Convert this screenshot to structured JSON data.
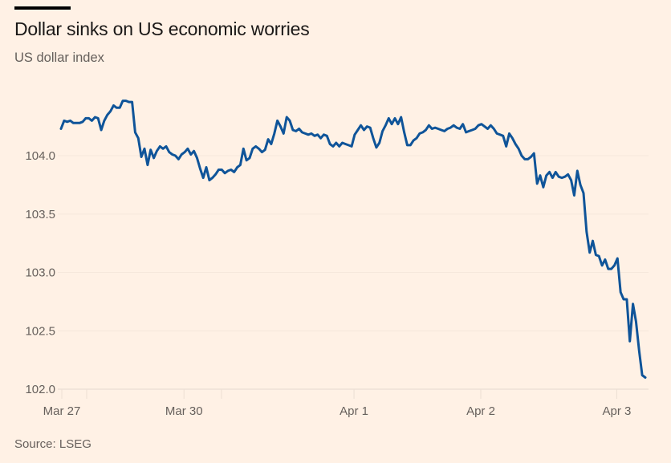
{
  "title": "Dollar sinks on US economic worries",
  "subtitle": "US dollar index",
  "source": "Source: LSEG",
  "colors": {
    "background": "#fff1e5",
    "line": "#0f5499",
    "grid": "#efe3d8",
    "text": "#66605c"
  },
  "chart_data": {
    "type": "line",
    "title": "Dollar sinks on US economic worries",
    "subtitle": "US dollar index",
    "xlabel": "",
    "ylabel": "",
    "ylim": [
      102.0,
      104.6
    ],
    "yticks": [
      102.0,
      102.5,
      103.0,
      103.5,
      104.0
    ],
    "ytick_labels": [
      "102.0",
      "102.5",
      "103.0",
      "103.5",
      "104.0"
    ],
    "xticks": [
      {
        "label": "Mar 27",
        "index": 0
      },
      {
        "label": "Mar 30",
        "index": 39
      },
      {
        "label": "Apr 1",
        "index": 94
      },
      {
        "label": "Apr 2",
        "index": 135
      },
      {
        "label": "Apr 3",
        "index": 179
      }
    ],
    "grid": true,
    "legend": "none",
    "series": [
      {
        "values": [
          104.23,
          104.3,
          104.29,
          104.3,
          104.28,
          104.28,
          104.28,
          104.29,
          104.32,
          104.32,
          104.3,
          104.33,
          104.32,
          104.22,
          104.3,
          104.35,
          104.38,
          104.43,
          104.41,
          104.41,
          104.47,
          104.47,
          104.46,
          104.46,
          104.2,
          104.15,
          103.99,
          104.06,
          103.92,
          104.05,
          103.98,
          104.04,
          104.08,
          104.06,
          104.08,
          104.03,
          104.01,
          104.0,
          103.97,
          104.01,
          104.03,
          104.06,
          104.01,
          104.04,
          103.98,
          103.89,
          103.81,
          103.9,
          103.79,
          103.81,
          103.84,
          103.88,
          103.88,
          103.85,
          103.87,
          103.88,
          103.86,
          103.9,
          103.92,
          104.06,
          103.96,
          103.98,
          104.06,
          104.08,
          104.06,
          104.03,
          104.05,
          104.14,
          104.1,
          104.19,
          104.3,
          104.25,
          104.19,
          104.33,
          104.3,
          104.22,
          104.21,
          104.23,
          104.2,
          104.19,
          104.18,
          104.19,
          104.17,
          104.18,
          104.15,
          104.18,
          104.17,
          104.1,
          104.08,
          104.11,
          104.08,
          104.11,
          104.1,
          104.09,
          104.08,
          104.18,
          104.22,
          104.26,
          104.22,
          104.25,
          104.24,
          104.15,
          104.07,
          104.11,
          104.21,
          104.26,
          104.32,
          104.27,
          104.32,
          104.27,
          104.33,
          104.2,
          104.09,
          104.09,
          104.13,
          104.15,
          104.19,
          104.2,
          104.22,
          104.26,
          104.23,
          104.24,
          104.23,
          104.22,
          104.21,
          104.23,
          104.24,
          104.26,
          104.24,
          104.23,
          104.27,
          104.2,
          104.21,
          104.22,
          104.23,
          104.26,
          104.27,
          104.25,
          104.23,
          104.26,
          104.23,
          104.19,
          104.18,
          104.17,
          104.08,
          104.19,
          104.15,
          104.1,
          104.06,
          104.0,
          103.97,
          103.97,
          103.99,
          104.02,
          103.76,
          103.83,
          103.73,
          103.83,
          103.86,
          103.81,
          103.86,
          103.82,
          103.81,
          103.82,
          103.84,
          103.79,
          103.66,
          103.87,
          103.75,
          103.68,
          103.35,
          103.17,
          103.27,
          103.15,
          103.14,
          103.06,
          103.11,
          103.03,
          103.03,
          103.06,
          103.12,
          102.83,
          102.77,
          102.77,
          102.41,
          102.73,
          102.58,
          102.33,
          102.12,
          102.1
        ]
      }
    ]
  }
}
